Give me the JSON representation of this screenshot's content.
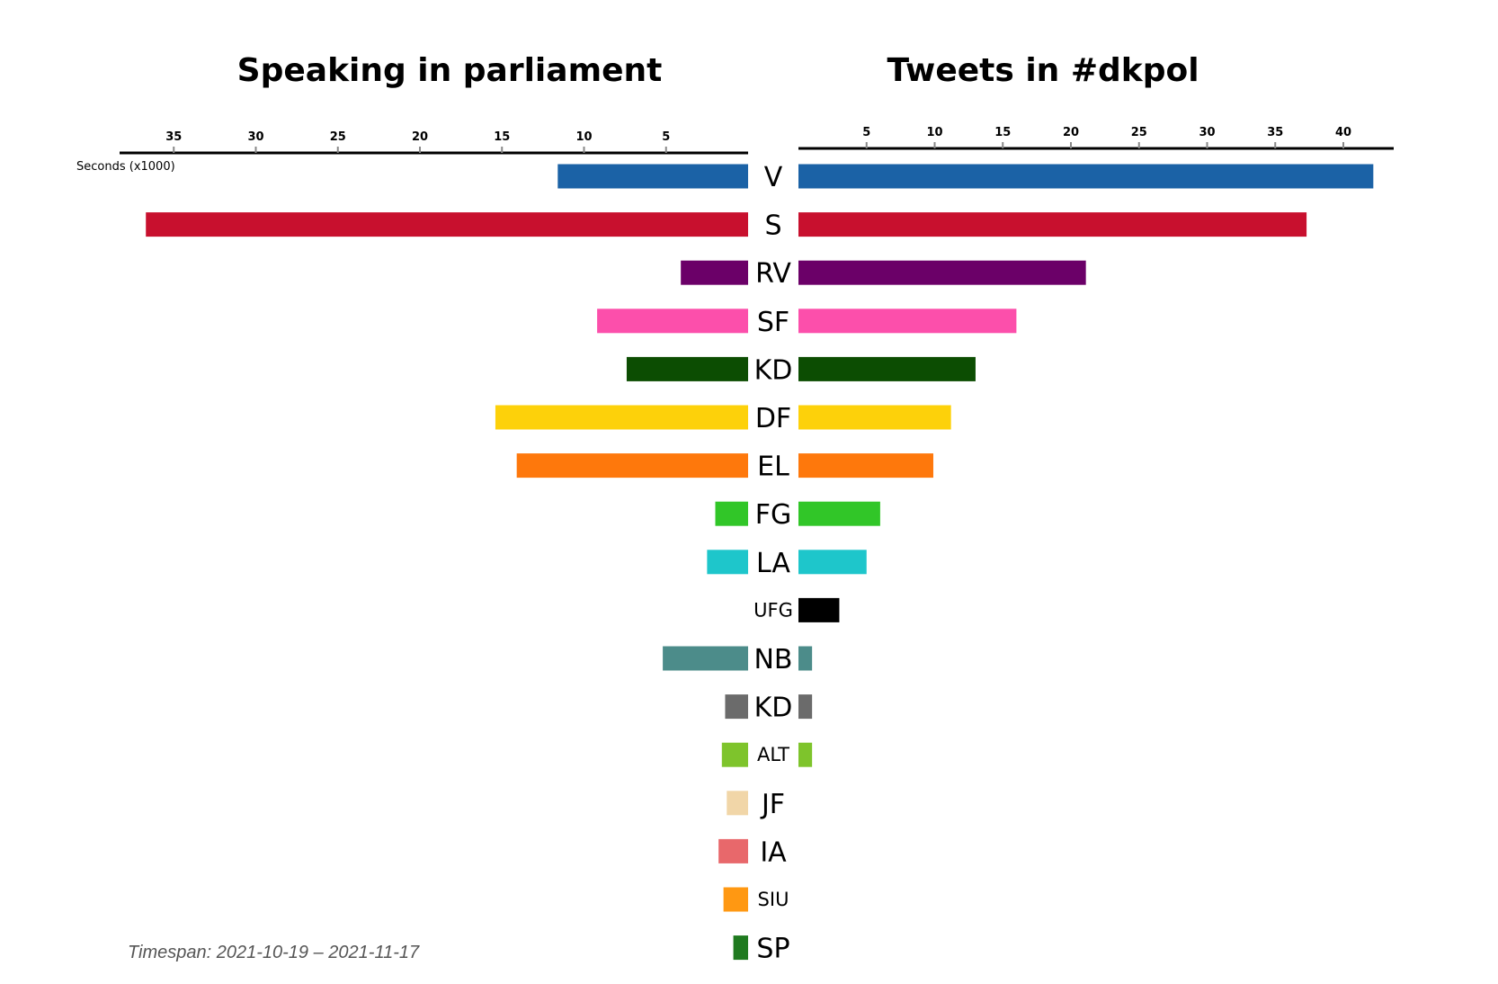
{
  "chart_data": [
    {
      "panel": "left",
      "type": "bar",
      "orientation": "horizontal",
      "direction": "right-to-left",
      "title": "Speaking in parliament",
      "unit_label": "Seconds (x1000)",
      "xlim": [
        0,
        38
      ],
      "ticks": [
        5,
        10,
        15,
        20,
        25,
        30,
        35
      ],
      "tick_labels": [
        "5",
        "10",
        "15",
        "20",
        "25",
        "30",
        "35"
      ],
      "categories": [
        "V",
        "S",
        "RV",
        "SF",
        "KD",
        "DF",
        "EL",
        "FG",
        "LA",
        "UFG",
        "NB",
        "KD",
        "ALT",
        "JF",
        "IA",
        "SIU",
        "SP"
      ],
      "values": [
        11.6,
        36.7,
        4.1,
        9.2,
        7.4,
        15.4,
        14.1,
        2.0,
        2.5,
        0,
        5.2,
        1.4,
        1.6,
        1.3,
        1.8,
        1.5,
        0.9
      ]
    },
    {
      "panel": "right",
      "type": "bar",
      "orientation": "horizontal",
      "direction": "left-to-right",
      "title": "Tweets in #dkpol",
      "xlim": [
        0,
        43.5
      ],
      "ticks": [
        5,
        10,
        15,
        20,
        25,
        30,
        35,
        40
      ],
      "tick_labels": [
        "5",
        "10",
        "15",
        "20",
        "25",
        "30",
        "35",
        "40"
      ],
      "categories": [
        "V",
        "S",
        "RV",
        "SF",
        "KD",
        "DF",
        "EL",
        "FG",
        "LA",
        "UFG",
        "NB",
        "KD",
        "ALT",
        "JF",
        "IA",
        "SIU",
        "SP"
      ],
      "values": [
        42.2,
        37.3,
        21.1,
        16.0,
        13.0,
        11.2,
        9.9,
        6.0,
        5.0,
        3.0,
        1.0,
        1.0,
        1.0,
        0,
        0,
        0,
        0
      ]
    }
  ],
  "parties": [
    {
      "label": "V",
      "color": "#1b62a6",
      "size": "big"
    },
    {
      "label": "S",
      "color": "#c8102e",
      "size": "big"
    },
    {
      "label": "RV",
      "color": "#6b0068",
      "size": "big"
    },
    {
      "label": "SF",
      "color": "#fc4fab",
      "size": "big"
    },
    {
      "label": "KD",
      "color": "#0c4d02",
      "size": "big"
    },
    {
      "label": "DF",
      "color": "#fdd10a",
      "size": "big"
    },
    {
      "label": "EL",
      "color": "#fe780c",
      "size": "big"
    },
    {
      "label": "FG",
      "color": "#31c628",
      "size": "big"
    },
    {
      "label": "LA",
      "color": "#1ec6cb",
      "size": "big"
    },
    {
      "label": "UFG",
      "color": "#000000",
      "size": "small"
    },
    {
      "label": "NB",
      "color": "#4c8c8a",
      "size": "big"
    },
    {
      "label": "KD",
      "color": "#6b6b6b",
      "size": "big"
    },
    {
      "label": "ALT",
      "color": "#7ec42c",
      "size": "small"
    },
    {
      "label": "JF",
      "color": "#f1d6a8",
      "size": "big"
    },
    {
      "label": "IA",
      "color": "#e8686b",
      "size": "big"
    },
    {
      "label": "SIU",
      "color": "#ff9812",
      "size": "small"
    },
    {
      "label": "SP",
      "color": "#1f7a1f",
      "size": "big"
    }
  ],
  "footer": {
    "timespan": "Timespan:  2021-10-19 – 2021-11-17"
  }
}
